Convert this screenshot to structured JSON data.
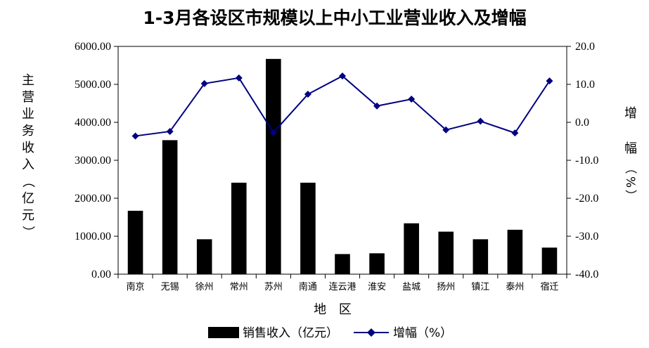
{
  "chart_data": {
    "type": "bar",
    "title": "1-3月各设区市规模以上中小工业营业收入及增幅",
    "xlabel": "地 区",
    "ylabel": "主营业务收入（亿元）",
    "y2label": "增幅（%）",
    "categories": [
      "南京",
      "无锡",
      "徐州",
      "常州",
      "苏州",
      "南通",
      "连云港",
      "淮安",
      "盐城",
      "扬州",
      "镇江",
      "泰州",
      "宿迁"
    ],
    "ylim": [
      0,
      6000
    ],
    "yticks": [
      "0.00",
      "1000.00",
      "2000.00",
      "3000.00",
      "4000.00",
      "5000.00",
      "6000.00"
    ],
    "y2lim": [
      -40,
      20
    ],
    "y2ticks": [
      "-40.0",
      "-30.0",
      "-20.0",
      "-10.0",
      "0.0",
      "10.0",
      "20.0"
    ],
    "series": [
      {
        "name": "销售收入（亿元）",
        "type": "bar",
        "color": "#000000",
        "values": [
          1670,
          3530,
          920,
          2410,
          5670,
          2410,
          530,
          550,
          1340,
          1120,
          920,
          1170,
          700
        ]
      },
      {
        "name": "增幅（%）",
        "type": "line",
        "axis": "right",
        "color": "#000080",
        "values": [
          -3.6,
          -2.4,
          10.2,
          11.7,
          -2.7,
          7.4,
          12.2,
          4.3,
          6.1,
          -2.0,
          0.3,
          -2.8,
          10.9
        ]
      }
    ],
    "legend": {
      "position": "bottom",
      "items": [
        "销售收入（亿元）",
        "增幅（%）"
      ]
    },
    "grid": false
  }
}
